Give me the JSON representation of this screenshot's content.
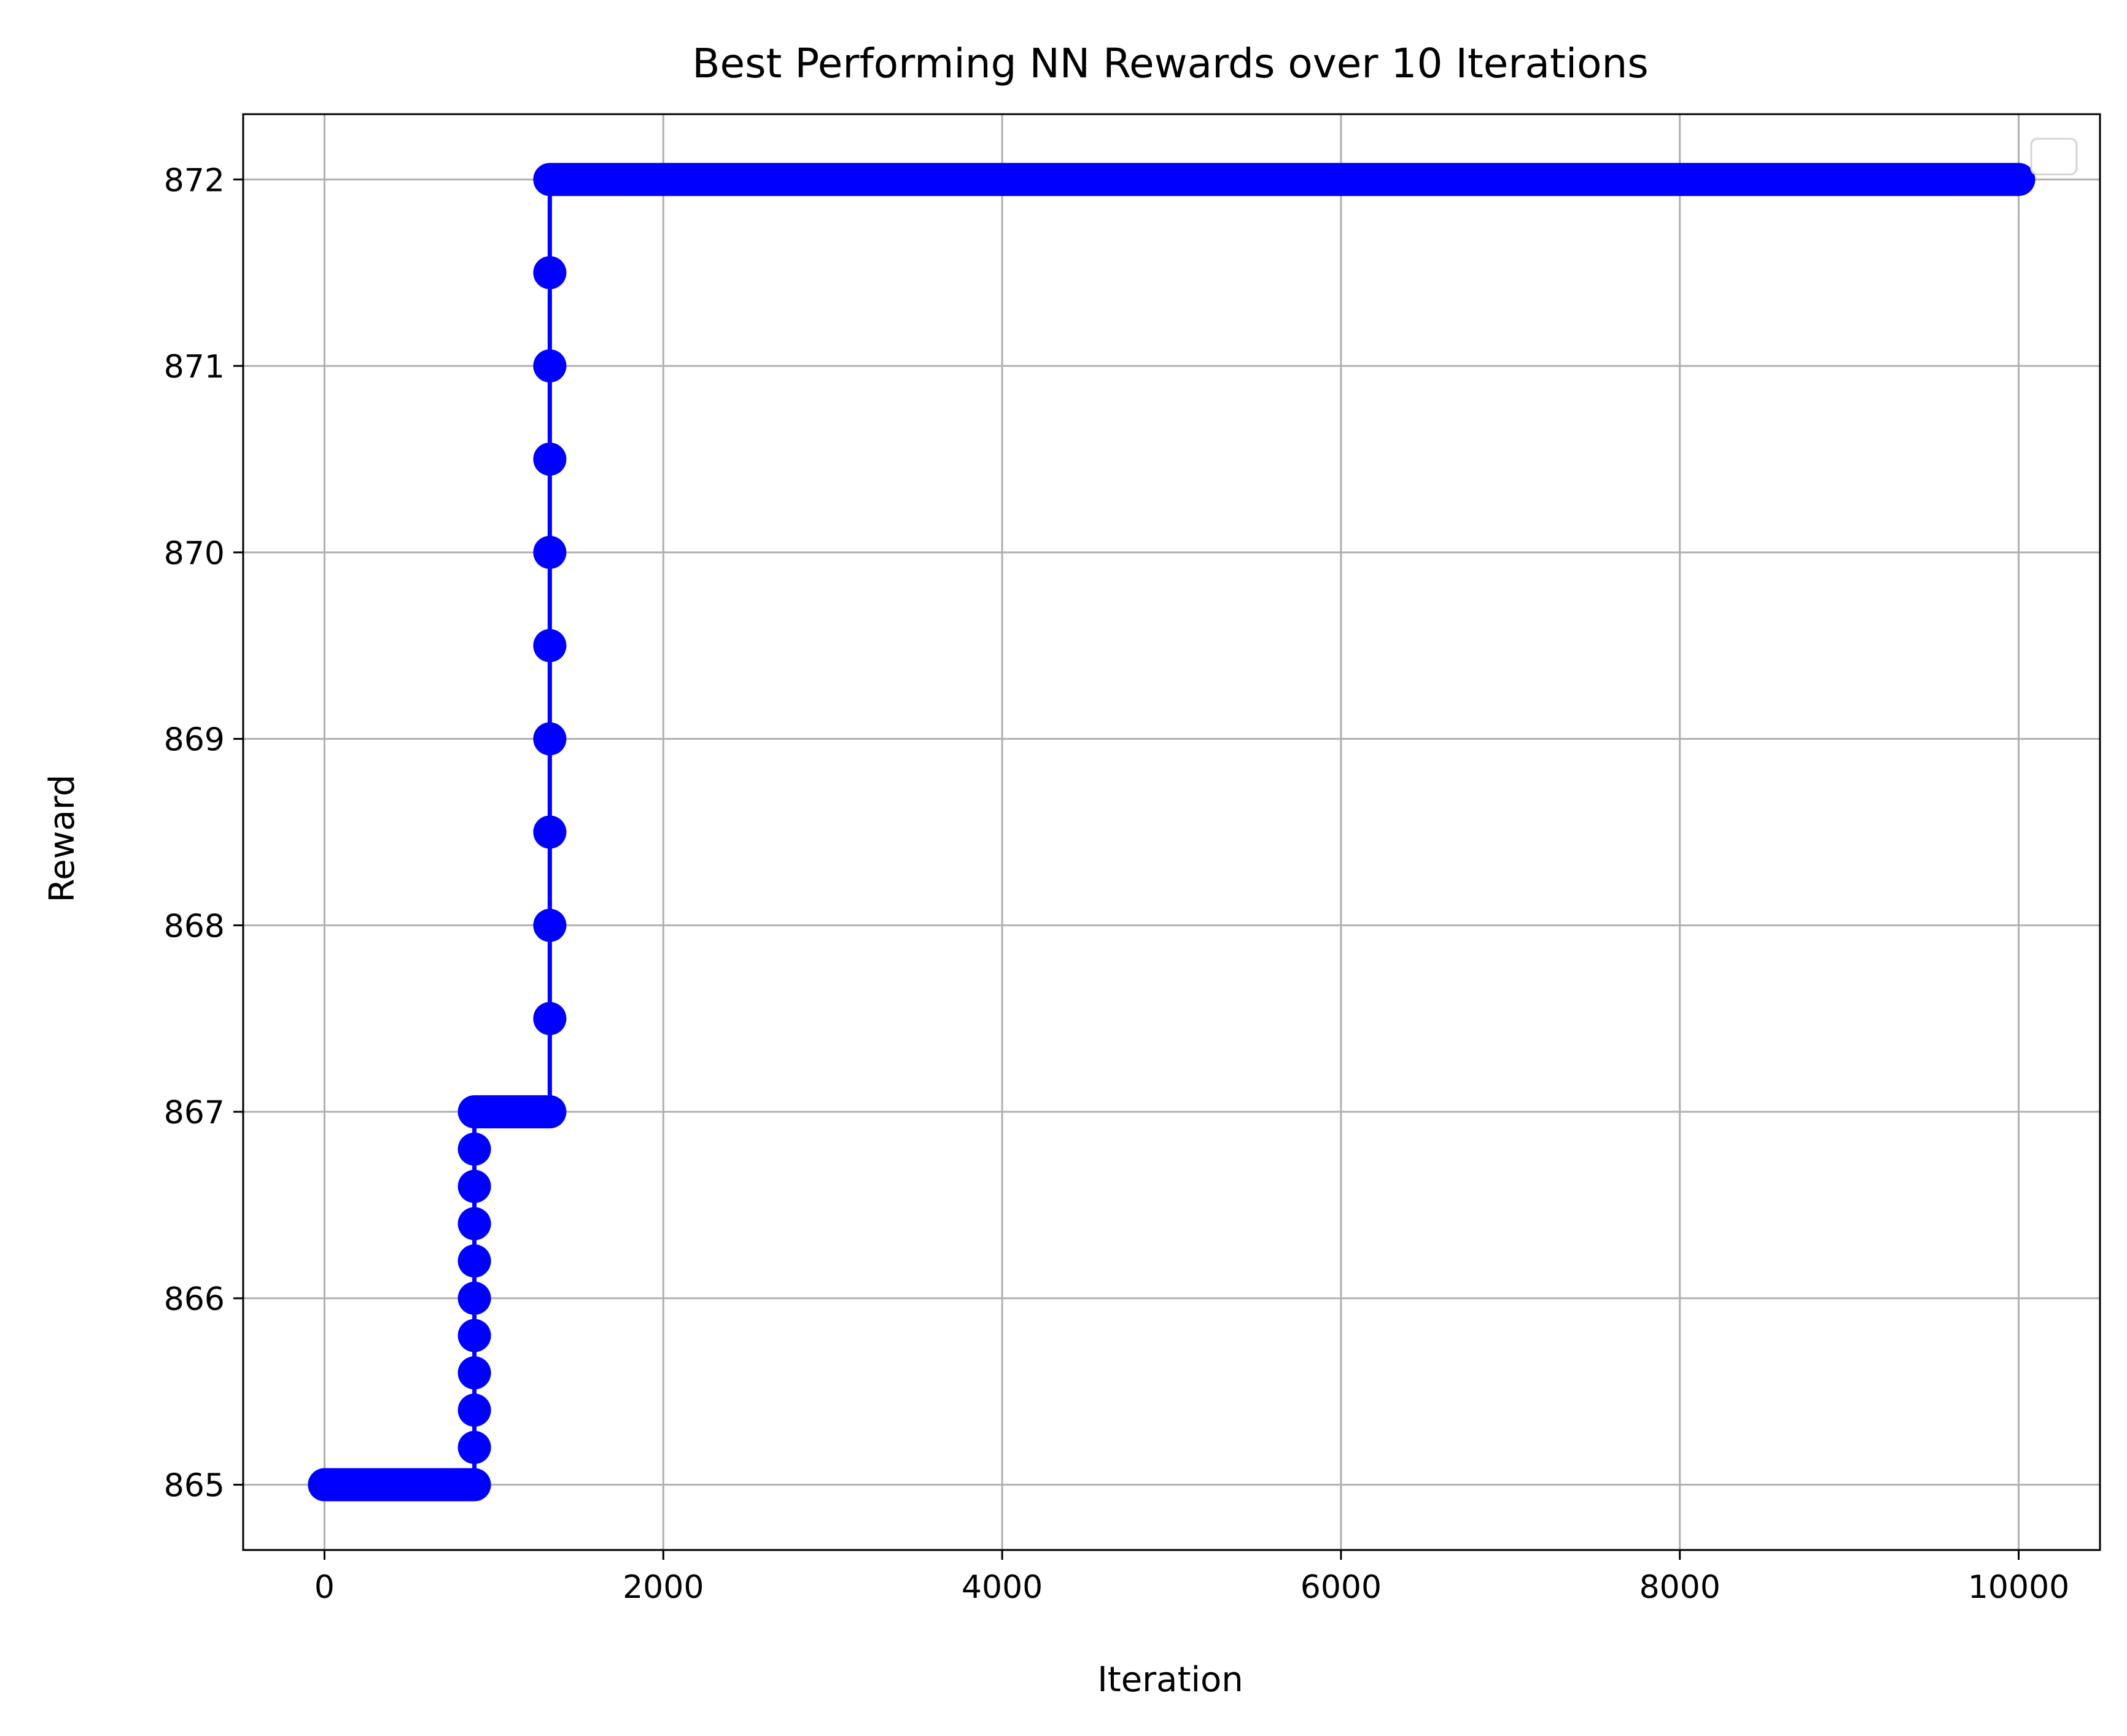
{
  "chart_data": {
    "type": "line",
    "title": "Best Performing NN Rewards over 10 Iterations",
    "xlabel": "Iteration",
    "ylabel": "Reward",
    "xlim": [
      -480,
      10480
    ],
    "ylim": [
      864.65,
      872.35
    ],
    "xticks": [
      0,
      2000,
      4000,
      6000,
      8000,
      10000
    ],
    "yticks": [
      865,
      866,
      867,
      868,
      869,
      870,
      871,
      872
    ],
    "grid": true,
    "legend": {
      "position": "upper-right",
      "entries": []
    },
    "series": [
      {
        "color": "#0000ff",
        "marker": "circle",
        "steps": [
          {
            "x0": 0,
            "x1": 885,
            "y": 865
          },
          {
            "x0": 885,
            "x1": 1330,
            "y": 867
          },
          {
            "x0": 1330,
            "x1": 10000,
            "y": 872
          }
        ],
        "vertical_points": [
          {
            "x": 885,
            "y": [
              865.2,
              865.4,
              865.6,
              865.8,
              866.0,
              866.2,
              866.4,
              866.6,
              866.8
            ]
          },
          {
            "x": 1330,
            "y": [
              867.5,
              868.0,
              868.5,
              869.0,
              869.5,
              870.0,
              870.5,
              871.0,
              871.5
            ]
          }
        ]
      }
    ]
  }
}
